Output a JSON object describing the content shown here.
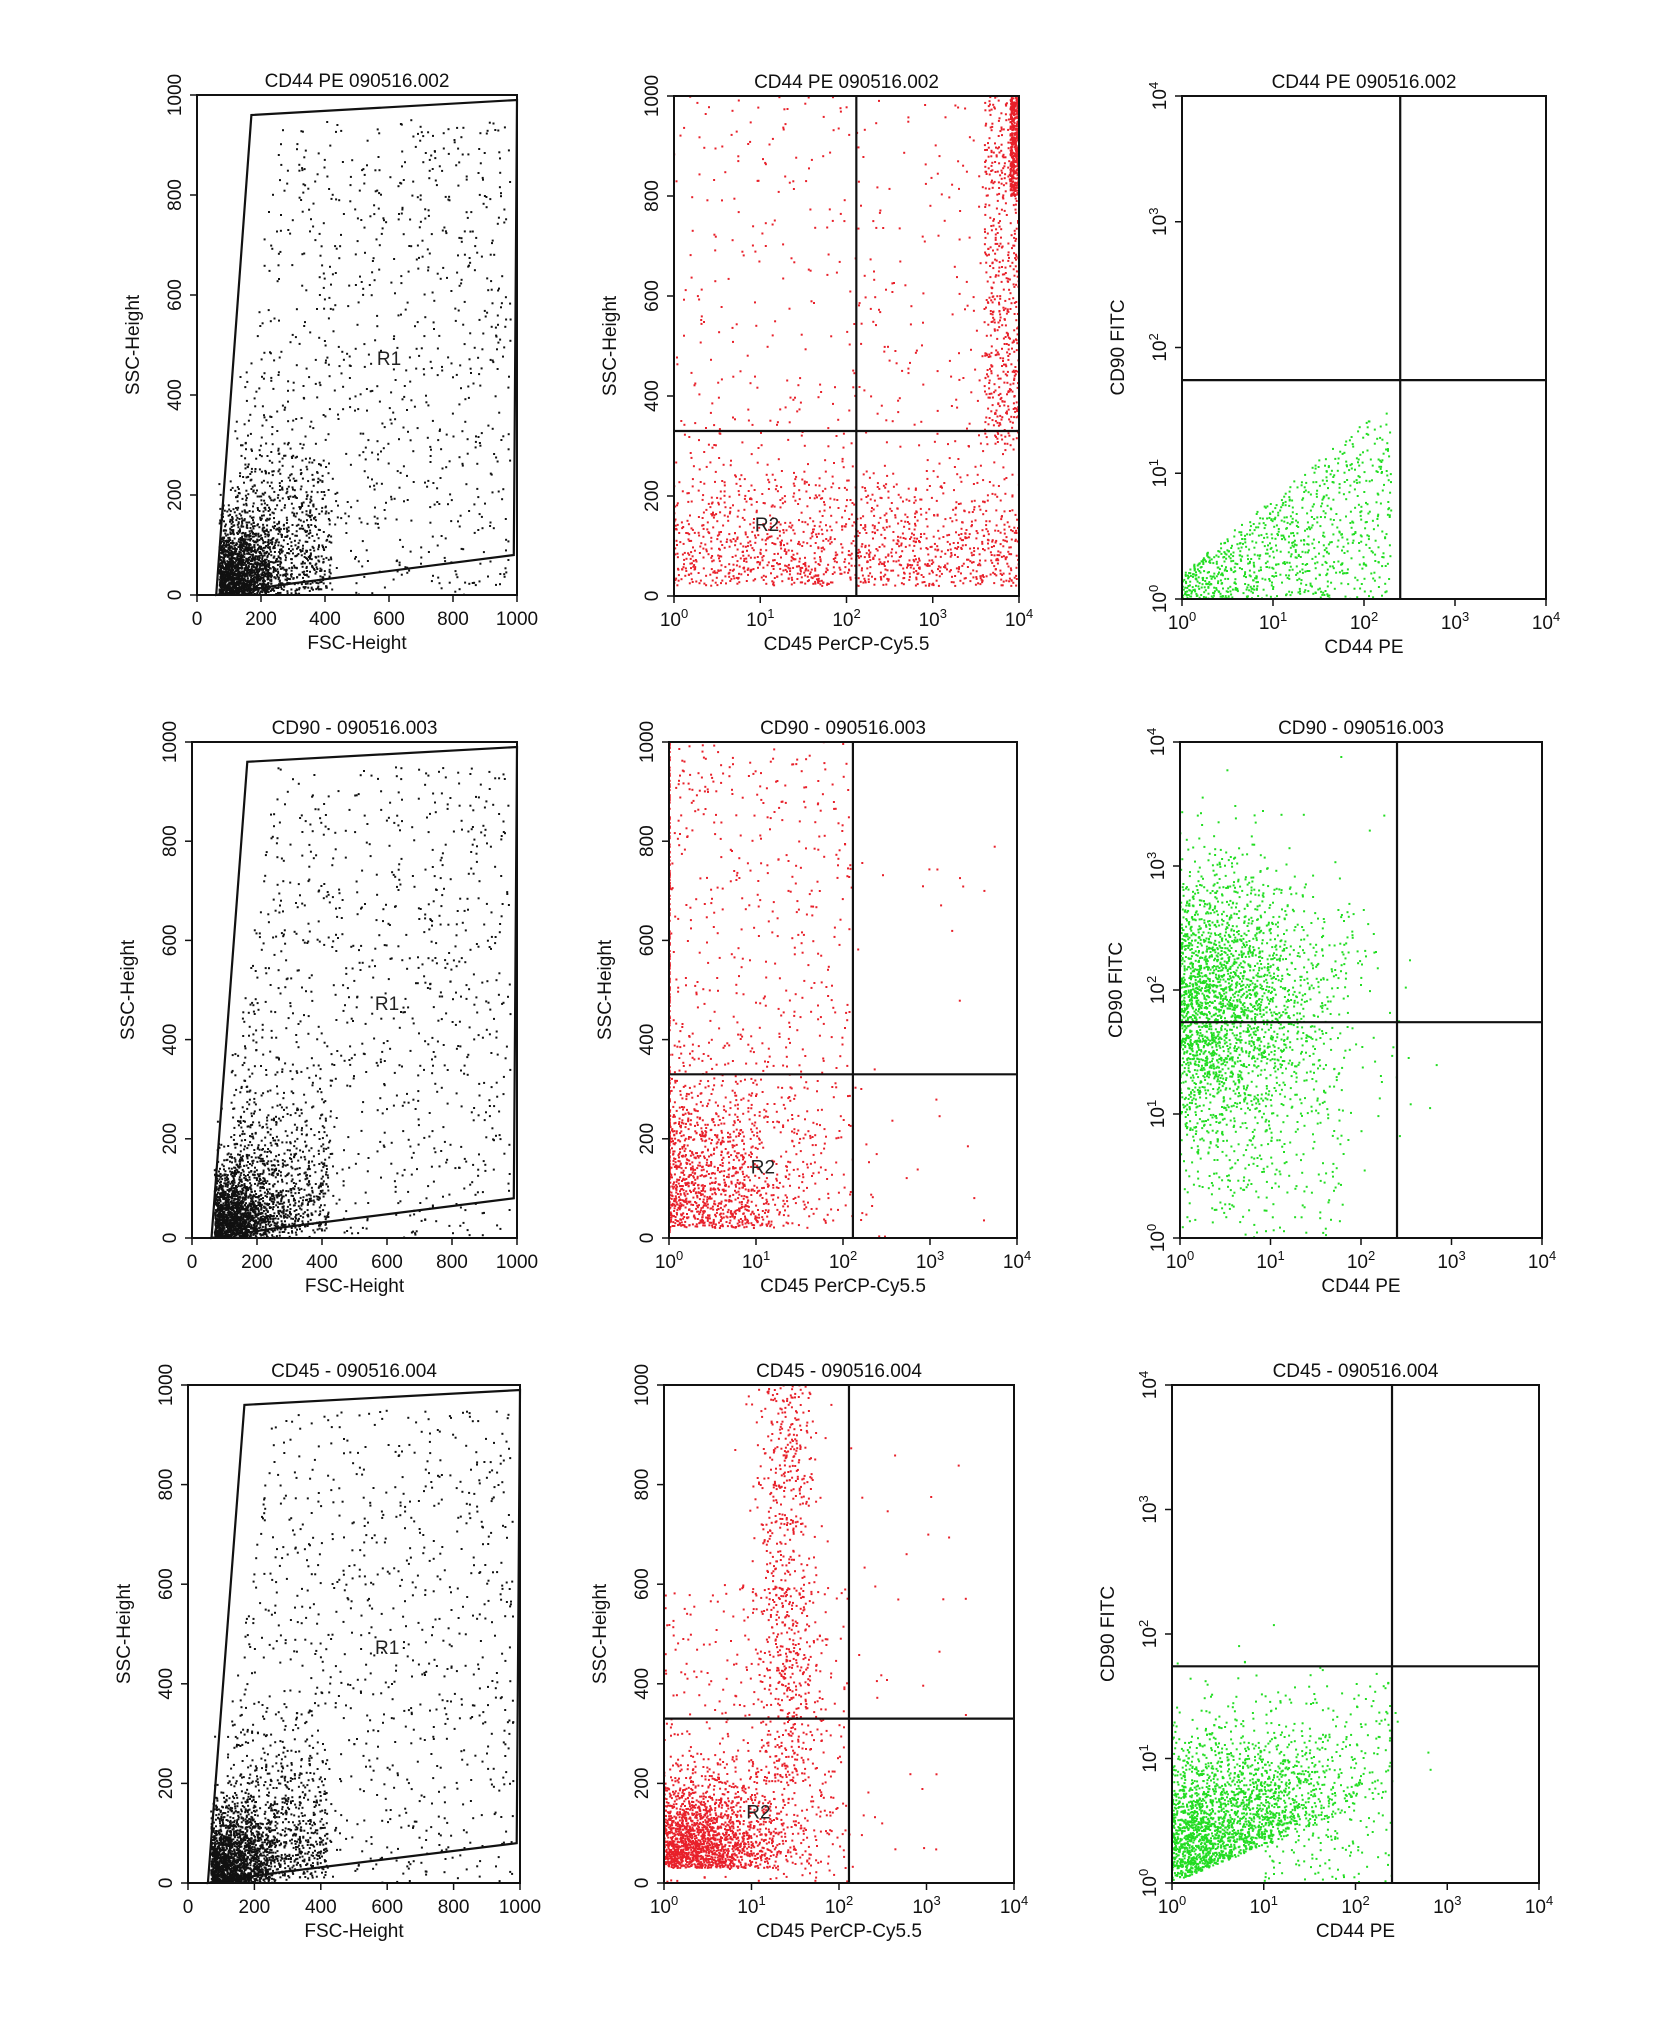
{
  "chart_data": [
    {
      "id": "r1c1",
      "type": "scatter",
      "title": "CD44 PE 090516.002",
      "xlabel": "FSC-Height",
      "ylabel": "SSC-Height",
      "xscale": "linear",
      "yscale": "linear",
      "xlim": [
        0,
        1000
      ],
      "ylim": [
        0,
        1000
      ],
      "xticks": [
        "0",
        "200",
        "400",
        "600",
        "800",
        "1000"
      ],
      "yticks": [
        "0",
        "200",
        "400",
        "600",
        "800",
        "1000"
      ],
      "color": "#111111",
      "gate": {
        "name": "R1",
        "polygon": [
          [
            60,
            0
          ],
          [
            170,
            960
          ],
          [
            1000,
            990
          ],
          [
            990,
            80
          ],
          [
            260,
            20
          ]
        ]
      },
      "gate_label": "R1",
      "density": "dense cluster at low FSC / low SSC (80-250, 0-150), diffuse spread across R1 to upper right"
    },
    {
      "id": "r1c2",
      "type": "scatter",
      "title": "CD44 PE 090516.002",
      "xlabel": "CD45 PerCP-Cy5.5",
      "ylabel": "SSC-Height",
      "xscale": "log",
      "yscale": "linear",
      "xlim": [
        1,
        10000
      ],
      "ylim": [
        0,
        1000
      ],
      "xticks": [
        "10^0",
        "10^1",
        "10^2",
        "10^3",
        "10^4"
      ],
      "yticks": [
        "0",
        "200",
        "400",
        "600",
        "800",
        "1000"
      ],
      "color": "#e8202a",
      "quadrant": {
        "x": 130,
        "y": 330
      },
      "region_label": "R2",
      "density": "heavy band at bottom across all CD45 values; dense column at right edge (CD45 ~10^4) rising to SSC 1000"
    },
    {
      "id": "r1c3",
      "type": "scatter",
      "title": "CD44 PE 090516.002",
      "xlabel": "CD44 PE",
      "ylabel": "CD90 FITC",
      "xscale": "log",
      "yscale": "log",
      "xlim": [
        1,
        10000
      ],
      "ylim": [
        1,
        10000
      ],
      "xticks": [
        "10^0",
        "10^1",
        "10^2",
        "10^3",
        "10^4"
      ],
      "yticks": [
        "10^0",
        "10^1",
        "10^2",
        "10^3",
        "10^4"
      ],
      "color": "#22dd22",
      "quadrant": {
        "x": 250,
        "y": 55
      },
      "density": "triangular spread rising from low CD44 toward ~10^2 CD44 / ~30 CD90; many events on the x-axis"
    },
    {
      "id": "r2c1",
      "type": "scatter",
      "title": "CD90 - 090516.003",
      "xlabel": "FSC-Height",
      "ylabel": "SSC-Height",
      "xscale": "linear",
      "yscale": "linear",
      "xlim": [
        0,
        1000
      ],
      "ylim": [
        0,
        1000
      ],
      "xticks": [
        "0",
        "200",
        "400",
        "600",
        "800",
        "1000"
      ],
      "yticks": [
        "0",
        "200",
        "400",
        "600",
        "800",
        "1000"
      ],
      "color": "#111111",
      "gate": {
        "name": "R1",
        "polygon": [
          [
            60,
            0
          ],
          [
            170,
            960
          ],
          [
            1000,
            990
          ],
          [
            990,
            80
          ],
          [
            260,
            20
          ]
        ]
      },
      "gate_label": "R1",
      "density": "dense cluster at low FSC / low SSC, diffuse spread across R1"
    },
    {
      "id": "r2c2",
      "type": "scatter",
      "title": "CD90 - 090516.003",
      "xlabel": "CD45 PerCP-Cy5.5",
      "ylabel": "SSC-Height",
      "xscale": "log",
      "yscale": "linear",
      "xlim": [
        1,
        10000
      ],
      "ylim": [
        0,
        1000
      ],
      "xticks": [
        "10^0",
        "10^1",
        "10^2",
        "10^3",
        "10^4"
      ],
      "yticks": [
        "0",
        "200",
        "400",
        "600",
        "800",
        "1000"
      ],
      "color": "#e8202a",
      "quadrant": {
        "x": 130,
        "y": 330
      },
      "region_label": "R2",
      "density": "events concentrated at CD45 < 10^2, dense below SSC 330, sparse above; few events right of divider"
    },
    {
      "id": "r2c3",
      "type": "scatter",
      "title": "CD90 - 090516.003",
      "xlabel": "CD44 PE",
      "ylabel": "CD90 FITC",
      "xscale": "log",
      "yscale": "log",
      "xlim": [
        1,
        10000
      ],
      "ylim": [
        1,
        10000
      ],
      "xticks": [
        "10^0",
        "10^1",
        "10^2",
        "10^3",
        "10^4"
      ],
      "yticks": [
        "10^0",
        "10^1",
        "10^2",
        "10^3",
        "10^4"
      ],
      "color": "#22dd22",
      "quadrant": {
        "x": 250,
        "y": 55
      },
      "density": "large dense cloud centered near CD44 ~3, CD90 ~100, spanning CD90 10^0 to 10^3"
    },
    {
      "id": "r3c1",
      "type": "scatter",
      "title": "CD45 - 090516.004",
      "xlabel": "FSC-Height",
      "ylabel": "SSC-Height",
      "xscale": "linear",
      "yscale": "linear",
      "xlim": [
        0,
        1000
      ],
      "ylim": [
        0,
        1000
      ],
      "xticks": [
        "0",
        "200",
        "400",
        "600",
        "800",
        "1000"
      ],
      "yticks": [
        "0",
        "200",
        "400",
        "600",
        "800",
        "1000"
      ],
      "color": "#111111",
      "gate": {
        "name": "R1",
        "polygon": [
          [
            60,
            0
          ],
          [
            170,
            960
          ],
          [
            1000,
            990
          ],
          [
            990,
            80
          ],
          [
            260,
            20
          ]
        ]
      },
      "gate_label": "R1",
      "density": "dense cluster at low FSC / low SSC, diffuse spread across R1"
    },
    {
      "id": "r3c2",
      "type": "scatter",
      "title": "CD45 - 090516.004",
      "xlabel": "CD45 PerCP-Cy5.5",
      "ylabel": "SSC-Height",
      "xscale": "log",
      "yscale": "linear",
      "xlim": [
        1,
        10000
      ],
      "ylim": [
        0,
        1000
      ],
      "xticks": [
        "10^0",
        "10^1",
        "10^2",
        "10^3",
        "10^4"
      ],
      "yticks": [
        "0",
        "200",
        "400",
        "600",
        "800",
        "1000"
      ],
      "color": "#e8202a",
      "quadrant": {
        "x": 130,
        "y": 330
      },
      "region_label": "R2",
      "density": "very dense blob at low CD45 / SSC < 200; column near CD45 ~40 rising to SSC ~1000"
    },
    {
      "id": "r3c3",
      "type": "scatter",
      "title": "CD45 - 090516.004",
      "xlabel": "CD44 PE",
      "ylabel": "CD90 FITC",
      "xscale": "log",
      "yscale": "log",
      "xlim": [
        1,
        10000
      ],
      "ylim": [
        1,
        10000
      ],
      "xticks": [
        "10^0",
        "10^1",
        "10^2",
        "10^3",
        "10^4"
      ],
      "yticks": [
        "10^0",
        "10^1",
        "10^2",
        "10^3",
        "10^4"
      ],
      "color": "#22dd22",
      "quadrant": {
        "x": 250,
        "y": 55
      },
      "density": "dense cloud in lower-left quadrant, rising diagonally toward CD44 ~200 / CD90 ~50"
    }
  ]
}
